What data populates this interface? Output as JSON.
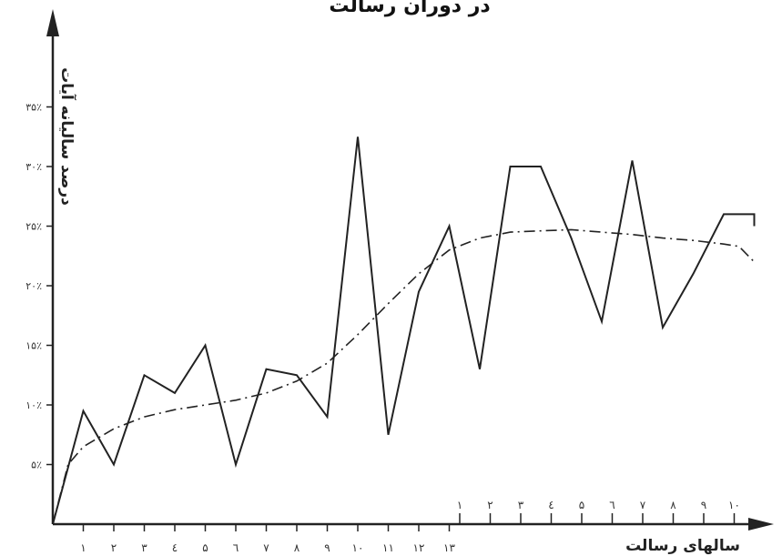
{
  "chart_data": {
    "type": "line",
    "title": "در دوران رسالت",
    "xlabel": "سالهای رسالت",
    "ylabel": "درصد سالیانه آیات",
    "ylim": [
      0,
      38
    ],
    "y_ticks": [
      {
        "value": 5,
        "label": "۵٪"
      },
      {
        "value": 10,
        "label": "۱۰٪"
      },
      {
        "value": 15,
        "label": "۱۵٪"
      },
      {
        "value": 20,
        "label": "۲۰٪"
      },
      {
        "value": 25,
        "label": "۲۵٪"
      },
      {
        "value": 30,
        "label": "۳۰٪"
      },
      {
        "value": 35,
        "label": "۳۵٪"
      }
    ],
    "x_ticks_mecca": [
      "۱",
      "۲",
      "۳",
      "٤",
      "۵",
      "٦",
      "۷",
      "۸",
      "۹",
      "۱۰",
      "۱۱",
      "۱۲",
      "۱۳"
    ],
    "x_ticks_medina": [
      "۱",
      "۲",
      "۳",
      "٤",
      "۵",
      "٦",
      "۷",
      "۸",
      "۹",
      "۱۰"
    ],
    "grid": false,
    "series": [
      {
        "style": "solid",
        "x": [
          0,
          1,
          2,
          3,
          4,
          5,
          6,
          7,
          8,
          9,
          10,
          11,
          12,
          13,
          14,
          15,
          16,
          17,
          18,
          19,
          20,
          21,
          22,
          23,
          23
        ],
        "y": [
          0,
          9.5,
          5,
          12.5,
          11,
          15,
          5,
          13,
          12.5,
          9,
          32.5,
          7.5,
          19.5,
          25,
          13,
          30,
          30,
          24,
          17,
          30.5,
          16.5,
          21,
          26,
          26,
          25
        ]
      },
      {
        "style": "dashdot",
        "x": [
          0,
          0.5,
          1,
          2,
          3,
          4,
          5,
          6,
          7,
          8,
          9,
          10,
          11,
          12,
          13,
          14,
          15,
          16,
          17,
          18,
          19,
          20,
          21,
          22,
          22.5,
          23
        ],
        "y": [
          0,
          5,
          6.5,
          8,
          9,
          9.6,
          10,
          10.4,
          11,
          12,
          13.5,
          15.9,
          18.5,
          21,
          23,
          24,
          24.5,
          24.6,
          24.7,
          24.5,
          24.3,
          24,
          23.8,
          23.5,
          23.3,
          22
        ]
      }
    ]
  }
}
